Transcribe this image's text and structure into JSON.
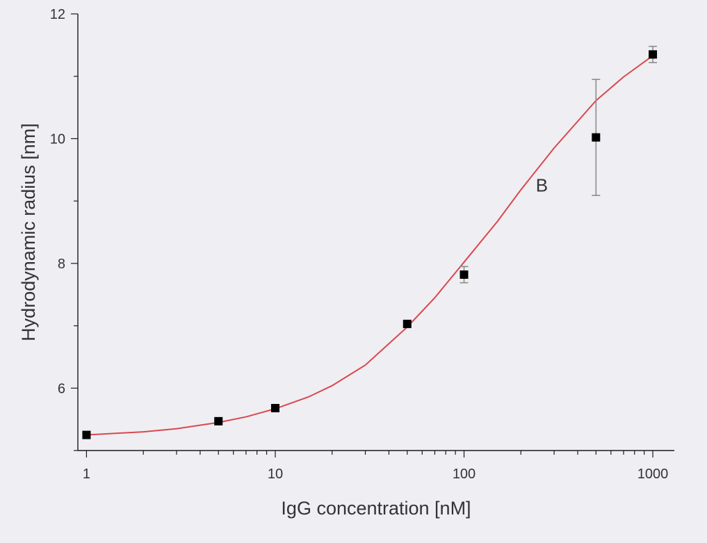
{
  "chart_data": {
    "type": "scatter",
    "xlabel": "IgG concentration [nM]",
    "ylabel": "Hydrodynamic radius [nm]",
    "xscale": "log",
    "xlim": [
      0.9,
      1300
    ],
    "ylim": [
      5,
      12
    ],
    "x_ticks": [
      1,
      10,
      100,
      1000
    ],
    "x_tick_labels": [
      "1",
      "10",
      "100",
      "1000"
    ],
    "y_ticks": [
      6,
      8,
      10,
      12
    ],
    "y_tick_labels": [
      "6",
      "8",
      "10",
      "12"
    ],
    "grid": false,
    "series": [
      {
        "kind": "points",
        "marker": "square",
        "color": "#000000",
        "x": [
          1,
          5,
          10,
          50,
          100,
          500,
          1000
        ],
        "y": [
          5.25,
          5.47,
          5.68,
          7.03,
          7.82,
          10.02,
          11.35
        ],
        "error": [
          0.0,
          0.03,
          0.03,
          0.03,
          0.13,
          0.93,
          0.13
        ]
      },
      {
        "kind": "fit",
        "color": "#d9484d",
        "x": [
          1,
          2,
          3,
          5,
          7,
          10,
          15,
          20,
          30,
          50,
          70,
          100,
          150,
          200,
          300,
          500,
          700,
          1000
        ],
        "y": [
          5.25,
          5.3,
          5.35,
          5.45,
          5.54,
          5.67,
          5.86,
          6.04,
          6.37,
          6.98,
          7.45,
          8.02,
          8.67,
          9.18,
          9.85,
          10.61,
          10.99,
          11.33
        ]
      }
    ],
    "annotations": [
      {
        "text": "B",
        "x": 240,
        "y": 9.15
      }
    ]
  }
}
